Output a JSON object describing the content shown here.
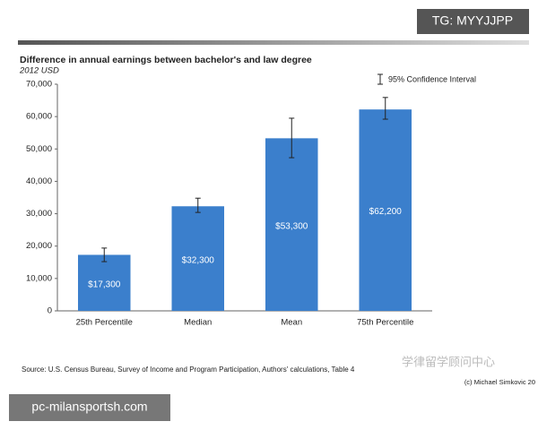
{
  "chart_data": {
    "type": "bar",
    "title": "Difference in annual earnings between bachelor's and law degree",
    "subtitle": "2012 USD",
    "categories": [
      "25th Percentile",
      "Median",
      "Mean",
      "75th Percentile"
    ],
    "values": [
      17300,
      32300,
      53300,
      62200
    ],
    "value_labels": [
      "$17,300",
      "$32,300",
      "$53,300",
      "$62,200"
    ],
    "ci_low": [
      15200,
      30400,
      47300,
      59200
    ],
    "ci_high": [
      19400,
      34800,
      59500,
      65900
    ],
    "color": "#3b7fcc",
    "ylim": [
      0,
      70000
    ],
    "yticks": [
      0,
      {
        "value": 10000,
        "label": "10,000"
      },
      {
        "value": 20000,
        "label": "20,000"
      },
      {
        "value": 30000,
        "label": "30,000"
      },
      {
        "value": 40000,
        "label": "40,000"
      },
      {
        "value": 50000,
        "label": "50,000"
      },
      {
        "value": 60000,
        "label": "60,000"
      },
      {
        "value": 70000,
        "label": "70,000"
      }
    ],
    "legend": "95% Confidence Interval",
    "source": "Source: U.S. Census Bureau, Survey of Income and Program Participation, Authors' calculations, Table 4",
    "credit": "(c) Michael Simkovic 20"
  },
  "watermarks": {
    "top": "TG: MYYJJPP",
    "bottom": "pc-milansportsh.com",
    "center": "学律留学顾问中心"
  }
}
